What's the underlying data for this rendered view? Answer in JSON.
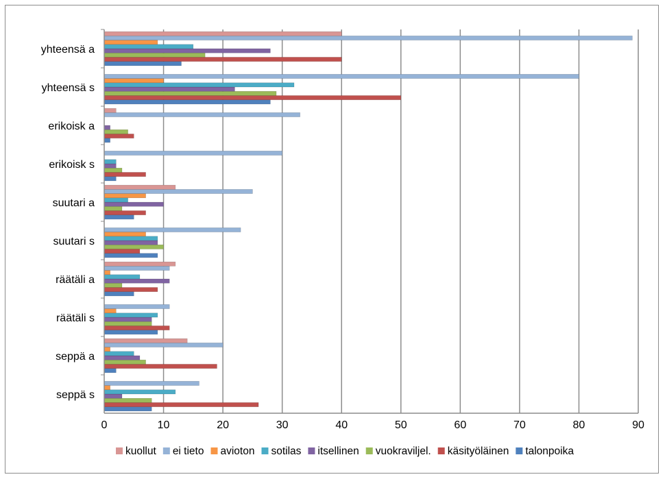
{
  "chart_data": {
    "type": "bar",
    "orientation": "horizontal",
    "categories": [
      "seppä s",
      "seppä a",
      "räätäli s",
      "räätäli a",
      "suutari s",
      "suutari a",
      "erikoisk s",
      "erikoisk a",
      "yhteensä s",
      "yhteensä a"
    ],
    "series": [
      {
        "name": "talonpoika",
        "color": "#4F81BD",
        "values": [
          8,
          2,
          9,
          5,
          9,
          5,
          2,
          1,
          28,
          13
        ]
      },
      {
        "name": "käsityöläinen",
        "color": "#C0504D",
        "values": [
          26,
          19,
          11,
          9,
          6,
          7,
          7,
          5,
          50,
          40
        ]
      },
      {
        "name": "vuokraviljel.",
        "color": "#9BBB59",
        "values": [
          8,
          7,
          8,
          3,
          10,
          3,
          3,
          4,
          29,
          17
        ]
      },
      {
        "name": "itsellinen",
        "color": "#8064A2",
        "values": [
          3,
          6,
          8,
          11,
          9,
          10,
          2,
          1,
          22,
          28
        ]
      },
      {
        "name": "sotilas",
        "color": "#4BACC6",
        "values": [
          12,
          5,
          9,
          6,
          9,
          4,
          2,
          0,
          32,
          15
        ]
      },
      {
        "name": "avioton",
        "color": "#F79646",
        "values": [
          1,
          1,
          2,
          1,
          7,
          7,
          0,
          0,
          10,
          9
        ]
      },
      {
        "name": "ei tieto",
        "color": "#95B3D7",
        "values": [
          16,
          20,
          11,
          11,
          23,
          25,
          30,
          33,
          80,
          89
        ]
      },
      {
        "name": "kuollut",
        "color": "#D99694",
        "values": [
          0,
          14,
          0,
          12,
          0,
          12,
          0,
          2,
          0,
          40
        ]
      }
    ],
    "xlim": [
      0,
      90
    ],
    "xticks": [
      "0",
      "10",
      "20",
      "30",
      "40",
      "50",
      "60",
      "70",
      "80",
      "90"
    ],
    "grid": true,
    "legend": "bottom",
    "legend_order": [
      "kuollut",
      "ei tieto",
      "avioton",
      "sotilas",
      "itsellinen",
      "vuokraviljel.",
      "käsityöläinen",
      "talonpoika"
    ]
  }
}
